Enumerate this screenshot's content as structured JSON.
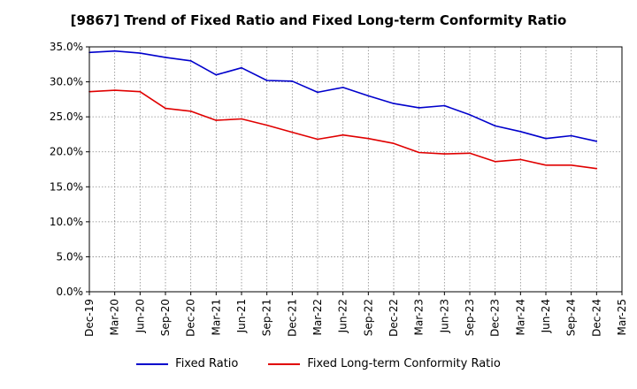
{
  "colors": {
    "fixed_ratio": "#0000cc",
    "fixed_lt_conformity": "#e00000"
  },
  "chart_data": {
    "type": "line",
    "title": "[9867]  Trend of Fixed Ratio and Fixed Long-term Conformity Ratio",
    "xlabel": "",
    "ylabel": "",
    "x_ticks": [
      "Dec-19",
      "Mar-20",
      "Jun-20",
      "Sep-20",
      "Dec-20",
      "Mar-21",
      "Jun-21",
      "Sep-21",
      "Dec-21",
      "Mar-22",
      "Jun-22",
      "Sep-22",
      "Dec-22",
      "Mar-23",
      "Jun-23",
      "Sep-23",
      "Dec-23",
      "Mar-24",
      "Jun-24",
      "Sep-24",
      "Dec-24",
      "Mar-25"
    ],
    "y_ticks": [
      "0.0%",
      "5.0%",
      "10.0%",
      "15.0%",
      "20.0%",
      "25.0%",
      "30.0%",
      "35.0%"
    ],
    "ylim": [
      0,
      35
    ],
    "grid": true,
    "legend_position": "bottom",
    "x": [
      "Dec-19",
      "Mar-20",
      "Jun-20",
      "Sep-20",
      "Dec-20",
      "Mar-21",
      "Jun-21",
      "Sep-21",
      "Dec-21",
      "Mar-22",
      "Jun-22",
      "Sep-22",
      "Dec-22",
      "Mar-23",
      "Jun-23",
      "Sep-23",
      "Dec-23",
      "Mar-24",
      "Jun-24",
      "Sep-24",
      "Dec-24"
    ],
    "series": [
      {
        "name": "Fixed Ratio",
        "values": [
          34.2,
          34.4,
          34.1,
          33.5,
          33.0,
          31.0,
          32.0,
          30.2,
          30.1,
          28.5,
          29.2,
          28.0,
          26.9,
          26.3,
          26.6,
          25.3,
          23.7,
          22.9,
          21.9,
          22.3,
          21.5
        ]
      },
      {
        "name": "Fixed Long-term Conformity Ratio",
        "values": [
          28.6,
          28.8,
          28.6,
          26.2,
          25.8,
          24.5,
          24.7,
          23.8,
          22.8,
          21.8,
          22.4,
          21.9,
          21.2,
          19.9,
          19.7,
          19.8,
          18.6,
          18.9,
          18.1,
          18.1,
          17.6
        ]
      }
    ]
  }
}
